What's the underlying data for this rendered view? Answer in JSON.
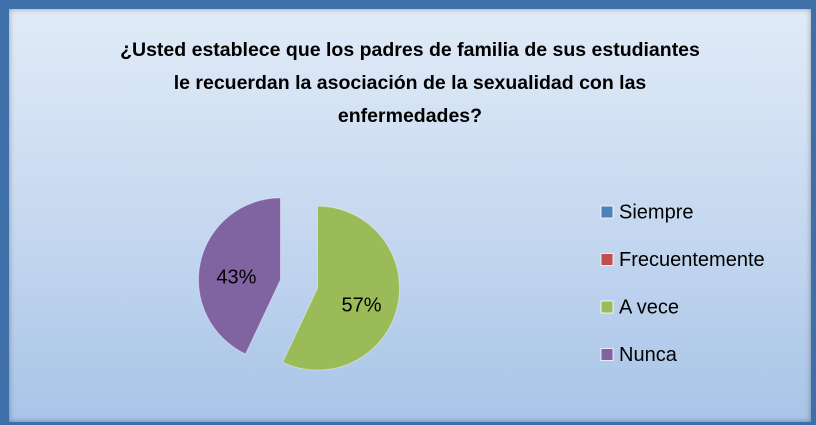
{
  "chart_data": {
    "type": "pie",
    "title": "¿Usted establece que los padres de  familia de sus estudiantes le recuerdan la asociación de la sexualidad con las enfermedades?",
    "categories": [
      "Siempre",
      "Frecuentemente",
      "A vece",
      "Nunca"
    ],
    "values": [
      0,
      0,
      57,
      43
    ],
    "value_labels": [
      null,
      null,
      "57%",
      "43%"
    ],
    "colors": [
      "#4f81bd",
      "#c0504d",
      "#9bbb59",
      "#8064a2"
    ],
    "legend": "right"
  }
}
